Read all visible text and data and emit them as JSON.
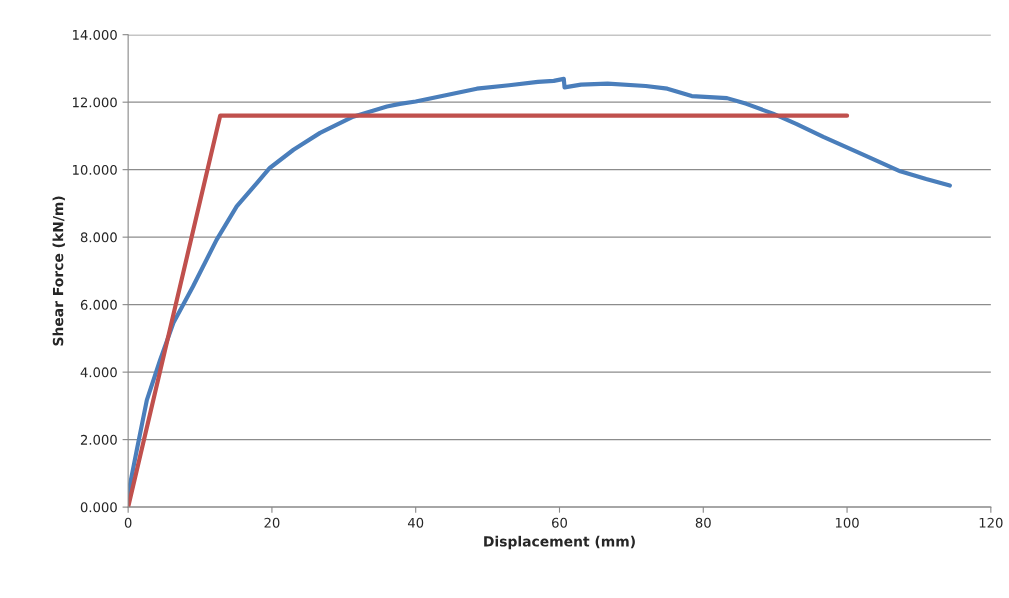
{
  "chart_data": {
    "type": "line",
    "xlabel": "Displacement (mm)",
    "ylabel": "Shear Force (kN/m)",
    "series": [
      {
        "color": "#4a7ebb",
        "x": [
          0,
          0.2,
          1.2,
          2.6,
          4.45,
          6.3,
          9.0,
          12.3,
          15.1,
          17.9,
          19.7,
          23,
          26.7,
          31.3,
          36,
          37.8,
          40,
          44,
          48.5,
          53,
          57,
          59.2,
          60.6,
          60.7,
          63,
          66.7,
          72,
          75,
          78.4,
          83.3,
          86,
          89.7,
          93,
          96.7,
          102,
          107.4,
          111,
          114.3
        ],
        "values": [
          0.1,
          0.6,
          1.69,
          3.17,
          4.36,
          5.46,
          6.53,
          7.92,
          8.91,
          9.6,
          10.05,
          10.59,
          11.09,
          11.57,
          11.87,
          11.95,
          12.02,
          12.2,
          12.4,
          12.5,
          12.6,
          12.63,
          12.69,
          12.44,
          12.52,
          12.55,
          12.48,
          12.4,
          12.18,
          12.12,
          11.95,
          11.66,
          11.35,
          10.97,
          10.47,
          9.95,
          9.72,
          9.53
        ]
      },
      {
        "color": "#c0504d",
        "x": [
          0,
          12.8,
          100
        ],
        "values": [
          0,
          11.6,
          11.6
        ]
      }
    ],
    "xlim": [
      0,
      120
    ],
    "xticks": [
      0,
      20,
      40,
      60,
      80,
      100,
      120
    ],
    "ylim": [
      0,
      14
    ],
    "yticks": [
      {
        "value": 0,
        "label": "0.000"
      },
      {
        "value": 2,
        "label": "2.000"
      },
      {
        "value": 4,
        "label": "4.000"
      },
      {
        "value": 6,
        "label": "6.000"
      },
      {
        "value": 8,
        "label": "8.000"
      },
      {
        "value": 10,
        "label": "10.000"
      },
      {
        "value": 12,
        "label": "12.000"
      },
      {
        "value": 14,
        "label": "14.000"
      }
    ],
    "grid": "y",
    "marker": "none",
    "line_style": "solid"
  }
}
